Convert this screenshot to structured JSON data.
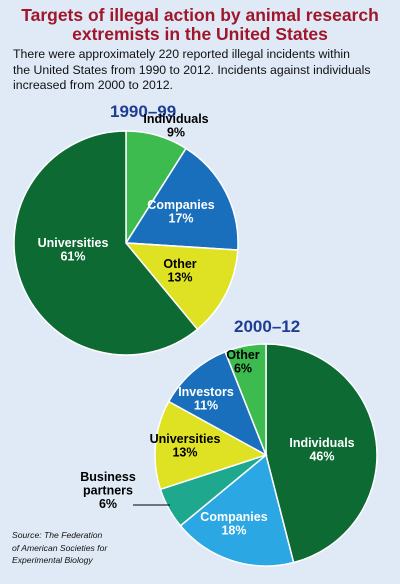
{
  "title_line1": "Targets of illegal action by animal research",
  "title_line2": "extremists in the United States",
  "subtitle_line1": "There were approximately 220 reported illegal incidents within",
  "subtitle_line2": "the United States from 1990 to 2012. Incidents against individuals",
  "subtitle_line3": "increased from 2000 to 2012.",
  "source_line1": "Source: The Federation",
  "source_line2": "of American Societies for",
  "source_line3": "Experimental Biology",
  "chart_data": [
    {
      "type": "pie",
      "title": "1990–99",
      "slices": [
        {
          "label": "Individuals",
          "value": 9,
          "value_label": "9%",
          "color": "#3dbb4f",
          "label_lines": [
            "Individuals",
            "9%"
          ]
        },
        {
          "label": "Companies",
          "value": 17,
          "value_label": "17%",
          "color": "#1a6fbd",
          "label_lines": [
            "Companies",
            "17%"
          ]
        },
        {
          "label": "Other",
          "value": 13,
          "value_label": "13%",
          "color": "#dfe223",
          "label_lines": [
            "Other",
            "13%"
          ]
        },
        {
          "label": "Universities",
          "value": 61,
          "value_label": "61%",
          "color": "#0e6a33",
          "label_lines": [
            "Universities",
            "61%"
          ]
        }
      ]
    },
    {
      "type": "pie",
      "title": "2000–12",
      "slices": [
        {
          "label": "Individuals",
          "value": 46,
          "value_label": "46%",
          "color": "#0e6a33",
          "label_lines": [
            "Individuals",
            "46%"
          ]
        },
        {
          "label": "Companies",
          "value": 18,
          "value_label": "18%",
          "color": "#2ba7e3",
          "label_lines": [
            "Companies",
            "18%"
          ]
        },
        {
          "label": "Business partners",
          "value": 6,
          "value_label": "6%",
          "color": "#1ea98e",
          "label_lines": [
            "Business",
            "partners",
            "6%"
          ]
        },
        {
          "label": "Universities",
          "value": 13,
          "value_label": "13%",
          "color": "#dfe223",
          "label_lines": [
            "Universities",
            "13%"
          ]
        },
        {
          "label": "Investors",
          "value": 11,
          "value_label": "11%",
          "color": "#1a6fbd",
          "label_lines": [
            "Investors",
            "11%"
          ]
        },
        {
          "label": "Other",
          "value": 6,
          "value_label": "6%",
          "color": "#3dbb4f",
          "label_lines": [
            "Other",
            "6%"
          ]
        }
      ]
    }
  ]
}
